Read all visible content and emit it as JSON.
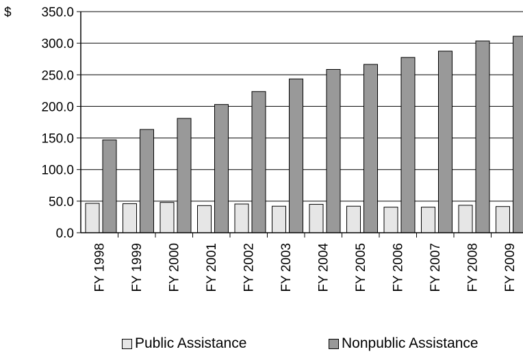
{
  "chart_data": {
    "type": "bar",
    "categories": [
      "FY 1998",
      "FY 1999",
      "FY 2000",
      "FY 2001",
      "FY 2002",
      "FY 2003",
      "FY 2004",
      "FY 2005",
      "FY 2006",
      "FY 2007",
      "FY 2008",
      "FY 2009"
    ],
    "series": [
      {
        "name": "Public Assistance",
        "color": "#e6e6e6",
        "values": [
          46.5,
          46.0,
          48.0,
          43.0,
          45.5,
          42.0,
          45.0,
          42.0,
          40.5,
          40.5,
          43.5,
          41.5
        ]
      },
      {
        "name": "Nonpublic Assistance",
        "color": "#999999",
        "values": [
          147.0,
          163.5,
          181.0,
          203.0,
          223.5,
          243.5,
          258.5,
          266.5,
          277.5,
          287.5,
          303.5,
          311.0
        ]
      }
    ],
    "ylim": [
      0,
      350
    ],
    "yticks": [
      "0.0",
      "50.0",
      "100.0",
      "150.0",
      "200.0",
      "250.0",
      "300.0",
      "350.0"
    ],
    "y_prefix": "$",
    "legend_position": "bottom",
    "grid": true
  }
}
